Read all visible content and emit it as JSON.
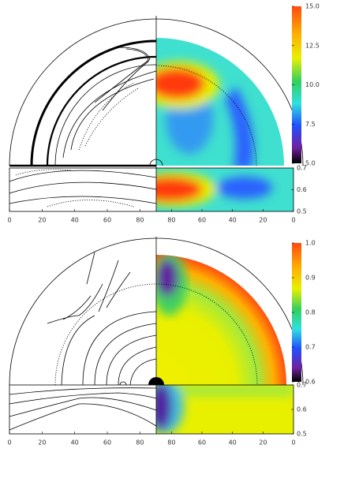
{
  "chart_data": [
    {
      "type": "contour",
      "colorbar": {
        "lim": [
          5,
          15
        ],
        "ticks": [
          {
            "value": 15,
            "label": "15.0"
          },
          12.5,
          {
            "value": 10,
            "label": "10.0"
          },
          7.5,
          {
            "value": 5,
            "label": "5.0"
          }
        ]
      },
      "strip": {
        "ylim": [
          0.5,
          0.7
        ],
        "yticks": [
          0.7,
          0.6,
          0.5
        ]
      },
      "xlim_left": [
        0,
        90
      ],
      "xticks_left": [
        0,
        20,
        40,
        60,
        80
      ],
      "xlim_right": [
        90,
        0
      ],
      "xticks_right": [
        80,
        60,
        40,
        20,
        0
      ]
    },
    {
      "type": "contour",
      "colorbar": {
        "lim": [
          0.6,
          1
        ],
        "ticks": [
          {
            "value": 1,
            "label": "1.0"
          },
          0.9,
          0.8,
          0.7,
          0.6
        ]
      },
      "strip": {
        "ylim": [
          0.5,
          0.7
        ],
        "yticks": [
          0.7,
          0.6,
          0.5
        ]
      },
      "xlim_left": [
        0,
        90
      ],
      "xticks_left": [
        0,
        20,
        40,
        60,
        80
      ],
      "xlim_right": [
        90,
        0
      ],
      "xticks_right": [
        80,
        60,
        40,
        20,
        0
      ]
    }
  ]
}
